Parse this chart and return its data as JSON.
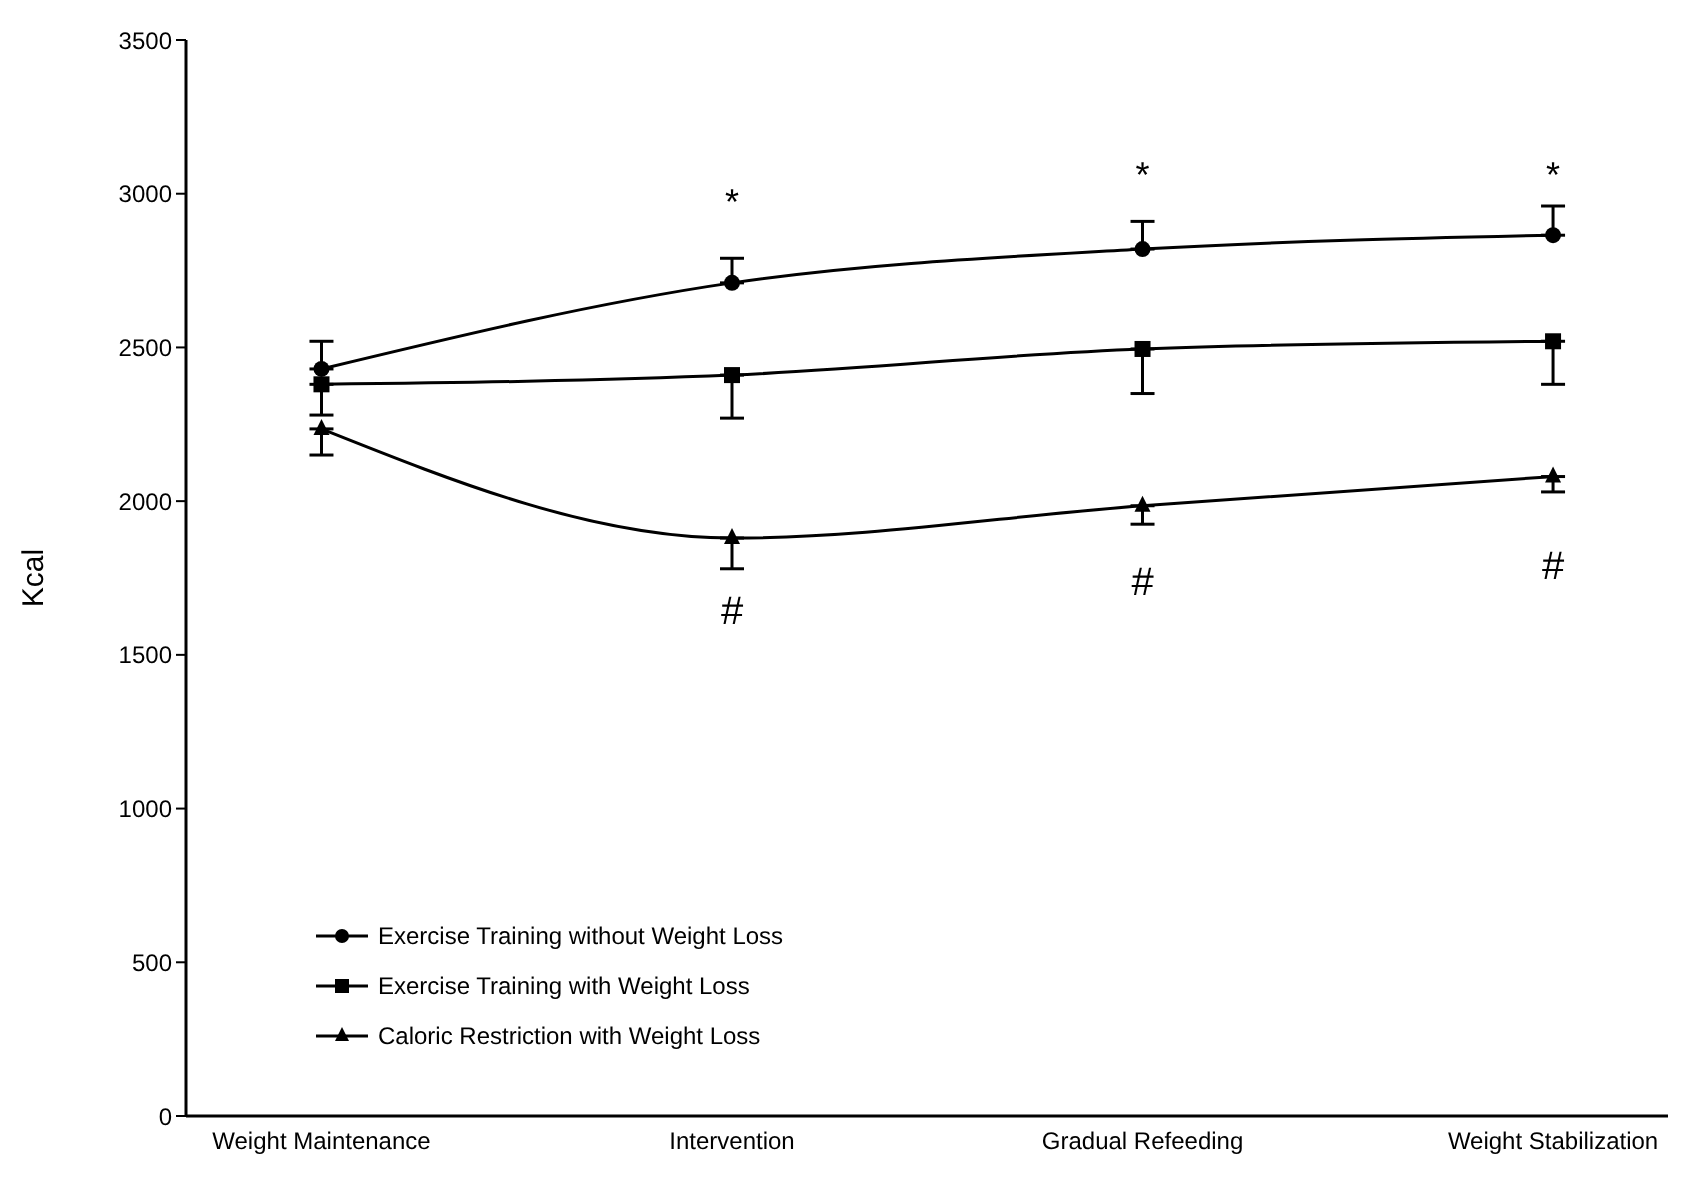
{
  "chart_data": {
    "type": "line",
    "ylabel": "Kcal",
    "categories": [
      "Weight Maintenance",
      "Intervention",
      "Gradual Refeeding",
      "Weight Stabilization"
    ],
    "series": [
      {
        "name": "Exercise Training without Weight Loss",
        "color": "#000000",
        "marker": "circle",
        "values": [
          2430,
          2710,
          2820,
          2865
        ],
        "errors": [
          [
            2430,
            2520
          ],
          [
            2710,
            2790
          ],
          [
            2820,
            2910
          ],
          [
            2865,
            2960
          ]
        ]
      },
      {
        "name": "Exercise Training with Weight Loss",
        "color": "#000000",
        "marker": "square",
        "values": [
          2380,
          2410,
          2495,
          2520
        ],
        "errors": [
          [
            2280,
            2380
          ],
          [
            2270,
            2410
          ],
          [
            2350,
            2495
          ],
          [
            2380,
            2520
          ]
        ]
      },
      {
        "name": "Caloric Restriction with Weight Loss",
        "color": "#000000",
        "marker": "triangle",
        "values": [
          2235,
          1880,
          1985,
          2080
        ],
        "errors": [
          [
            2150,
            2235
          ],
          [
            1780,
            1880
          ],
          [
            1925,
            1985
          ],
          [
            2030,
            2080
          ]
        ]
      }
    ],
    "ylim": [
      0,
      3500
    ],
    "yticks": [
      0,
      500,
      1000,
      1500,
      2000,
      2500,
      3000,
      3500
    ],
    "grid": false,
    "legend": "bottom left",
    "line_style": "solid",
    "annotations": [
      "*",
      "*",
      "*",
      "#",
      "#",
      "#"
    ]
  }
}
